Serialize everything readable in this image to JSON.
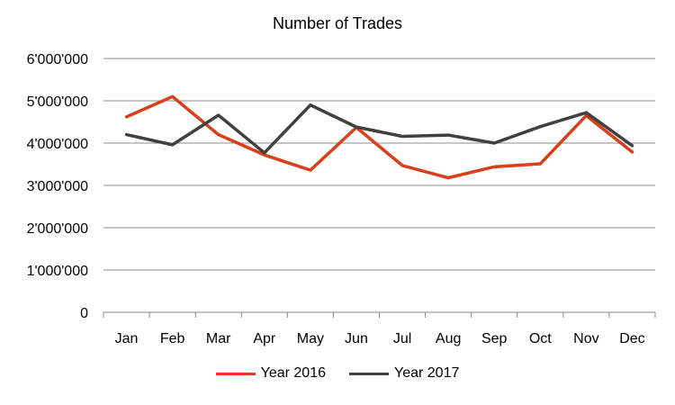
{
  "chart_data": {
    "type": "line",
    "title": "Number  of Trades",
    "categories": [
      "Jan",
      "Feb",
      "Mar",
      "Apr",
      "May",
      "Jun",
      "Jul",
      "Aug",
      "Sep",
      "Oct",
      "Nov",
      "Dec"
    ],
    "yticks": [
      "0",
      "1'000'000",
      "2'000'000",
      "3'000'000",
      "4'000'000",
      "5'000'000",
      "6'000'000"
    ],
    "ylim": [
      0,
      6000000
    ],
    "grid": true,
    "legend_position": "bottom",
    "series": [
      {
        "name": "Year 2016",
        "color": "#d9401a",
        "values": [
          4620000,
          5100000,
          4200000,
          3720000,
          3360000,
          4370000,
          3470000,
          3180000,
          3440000,
          3510000,
          4650000,
          3790000
        ]
      },
      {
        "name": "Year 2017",
        "color": "#404040",
        "values": [
          4200000,
          3960000,
          4660000,
          3770000,
          4900000,
          4380000,
          4160000,
          4190000,
          4000000,
          4390000,
          4720000,
          3940000
        ]
      }
    ]
  }
}
